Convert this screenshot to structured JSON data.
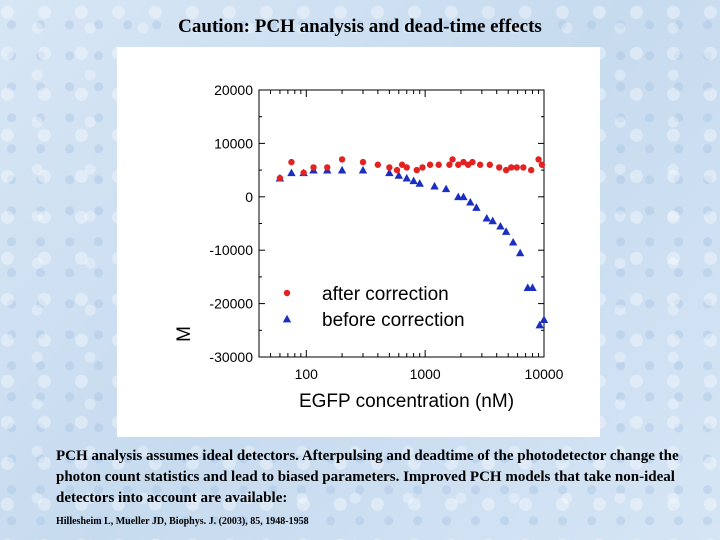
{
  "slide": {
    "title": "Caution: PCH analysis and dead-time effects",
    "body": "PCH analysis assumes ideal detectors. Afterpulsing and deadtime of the photodetector change the photon count statistics and lead to biased parameters. Improved PCH models that take non-ideal detectors into account are available:",
    "citation": "Hillesheim L, Mueller JD, Biophys. J. (2003), 85, 1948-1958"
  },
  "colors": {
    "after": "#e32222",
    "before": "#1a2fc0",
    "axis": "#000000"
  },
  "chart_data": {
    "type": "scatter",
    "title": "",
    "xlabel": "EGFP concentration (nM)",
    "ylabel": "M",
    "xscale": "log",
    "xlim": [
      40,
      10000
    ],
    "ylim": [
      -30000,
      20000
    ],
    "xticks": [
      100,
      1000,
      10000
    ],
    "xtick_labels": [
      "100",
      "1000",
      "10000"
    ],
    "yticks": [
      20000,
      10000,
      0,
      -10000,
      -20000,
      -30000
    ],
    "ytick_labels": [
      "20000",
      "10000",
      "0",
      "-10000",
      "-20000",
      "-30000"
    ],
    "legend_position": "lower-middle",
    "series": [
      {
        "name": "after correction",
        "marker": "circle",
        "points": [
          [
            60,
            3500
          ],
          [
            75,
            6500
          ],
          [
            95,
            4500
          ],
          [
            115,
            5500
          ],
          [
            150,
            5500
          ],
          [
            200,
            7000
          ],
          [
            300,
            6500
          ],
          [
            400,
            6000
          ],
          [
            500,
            5500
          ],
          [
            580,
            5000
          ],
          [
            640,
            6000
          ],
          [
            700,
            5500
          ],
          [
            850,
            5000
          ],
          [
            950,
            5500
          ],
          [
            1100,
            6000
          ],
          [
            1300,
            6000
          ],
          [
            1600,
            6000
          ],
          [
            1700,
            7000
          ],
          [
            1900,
            6000
          ],
          [
            2100,
            6500
          ],
          [
            2300,
            6000
          ],
          [
            2500,
            6500
          ],
          [
            2900,
            6000
          ],
          [
            3500,
            6000
          ],
          [
            4200,
            5500
          ],
          [
            4800,
            5000
          ],
          [
            5300,
            5500
          ],
          [
            5900,
            5500
          ],
          [
            6700,
            5500
          ],
          [
            7800,
            5000
          ],
          [
            9000,
            7000
          ],
          [
            9600,
            6000
          ]
        ]
      },
      {
        "name": "before correction",
        "marker": "triangle",
        "points": [
          [
            60,
            3500
          ],
          [
            75,
            4500
          ],
          [
            95,
            4500
          ],
          [
            115,
            5000
          ],
          [
            150,
            5000
          ],
          [
            200,
            5000
          ],
          [
            300,
            5000
          ],
          [
            500,
            4500
          ],
          [
            600,
            4000
          ],
          [
            700,
            3500
          ],
          [
            800,
            3000
          ],
          [
            900,
            2500
          ],
          [
            1200,
            2000
          ],
          [
            1500,
            1500
          ],
          [
            1900,
            0
          ],
          [
            2100,
            0
          ],
          [
            2400,
            -1000
          ],
          [
            2700,
            -2000
          ],
          [
            3300,
            -4000
          ],
          [
            3700,
            -4500
          ],
          [
            4300,
            -5500
          ],
          [
            4800,
            -6500
          ],
          [
            5500,
            -8500
          ],
          [
            6300,
            -10500
          ],
          [
            7300,
            -17000
          ],
          [
            8000,
            -17000
          ],
          [
            9200,
            -24000
          ],
          [
            10000,
            -23000
          ]
        ]
      }
    ]
  }
}
